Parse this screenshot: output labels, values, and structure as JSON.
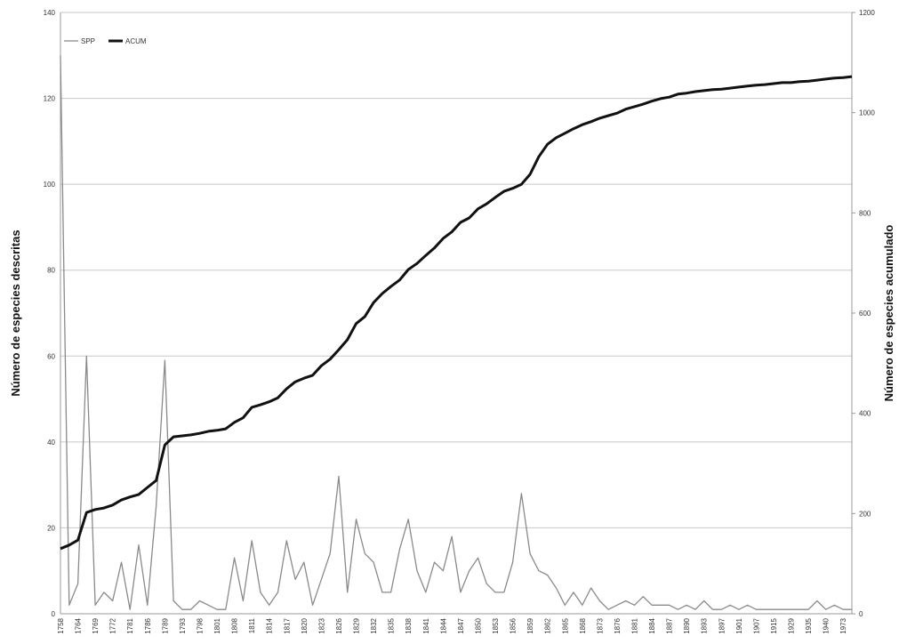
{
  "chart_data": {
    "type": "line",
    "y_label": "Número de especies descritas",
    "y2_label": "Número de especies acumulado",
    "categories": [
      "1758",
      null,
      "1764",
      null,
      "1769",
      null,
      "1772",
      null,
      "1781",
      null,
      "1786",
      null,
      "1789",
      null,
      "1793",
      null,
      "1798",
      null,
      "1801",
      null,
      "1808",
      null,
      "1811",
      null,
      "1814",
      null,
      "1817",
      null,
      "1820",
      null,
      "1823",
      null,
      "1826",
      null,
      "1829",
      null,
      "1832",
      null,
      "1835",
      null,
      "1838",
      null,
      "1841",
      null,
      "1844",
      null,
      "1847",
      null,
      "1850",
      null,
      "1853",
      null,
      "1856",
      null,
      "1859",
      null,
      "1862",
      null,
      "1865",
      null,
      "1868",
      null,
      "1873",
      null,
      "1876",
      null,
      "1881",
      null,
      "1884",
      null,
      "1887",
      null,
      "1890",
      null,
      "1893",
      null,
      "1897",
      null,
      "1901",
      null,
      "1907",
      null,
      "1915",
      null,
      "1929",
      null,
      "1935",
      null,
      "1940",
      null,
      "1973",
      null
    ],
    "series": [
      {
        "name": "SPP",
        "color": "#8a8a8a",
        "values": [
          130,
          2,
          7,
          60,
          2,
          5,
          3,
          12,
          1,
          16,
          2,
          25,
          59,
          3,
          1,
          1,
          3,
          2,
          1,
          1,
          13,
          3,
          17,
          5,
          2,
          5,
          17,
          8,
          12,
          2,
          8,
          14,
          32,
          5,
          22,
          14,
          12,
          5,
          5,
          15,
          22,
          10,
          5,
          12,
          10,
          18,
          5,
          10,
          13,
          7,
          5,
          5,
          12,
          28,
          14,
          10,
          9,
          6,
          2,
          5,
          2,
          6,
          3,
          1,
          2,
          3,
          2,
          4,
          2,
          2,
          2,
          1,
          2,
          1,
          3,
          1,
          1,
          2,
          1,
          2,
          1,
          1,
          1,
          1,
          1,
          1,
          1,
          3,
          1,
          2,
          1,
          1
        ]
      },
      {
        "name": "ACUM",
        "color": "#111111",
        "axis": "y2",
        "values": [
          130,
          137,
          147,
          202,
          208,
          211,
          217,
          227,
          233,
          238,
          252,
          266,
          337,
          353,
          355,
          357,
          360,
          364,
          366,
          369,
          382,
          391,
          412,
          417,
          423,
          431,
          449,
          463,
          470,
          476,
          495,
          508,
          527,
          547,
          579,
          593,
          621,
          639,
          653,
          666,
          687,
          699,
          715,
          730,
          749,
          762,
          781,
          790,
          808,
          818,
          831,
          843,
          849,
          857,
          877,
          912,
          937,
          950,
          959,
          968,
          976,
          982,
          989,
          994,
          999,
          1007,
          1012,
          1017,
          1023,
          1028,
          1031,
          1037,
          1039,
          1042,
          1044,
          1046,
          1047,
          1049,
          1051,
          1053,
          1055,
          1056,
          1058,
          1060,
          1060,
          1062,
          1063,
          1065,
          1067,
          1069,
          1070,
          1072
        ]
      }
    ],
    "ylim": [
      0,
      140
    ],
    "yticks": [
      0,
      20,
      40,
      60,
      80,
      100,
      120,
      140
    ],
    "y2lim": [
      0,
      1200
    ],
    "y2ticks": [
      0,
      200,
      400,
      600,
      800,
      1000,
      1200
    ],
    "grid": true,
    "legend": "top-left"
  }
}
